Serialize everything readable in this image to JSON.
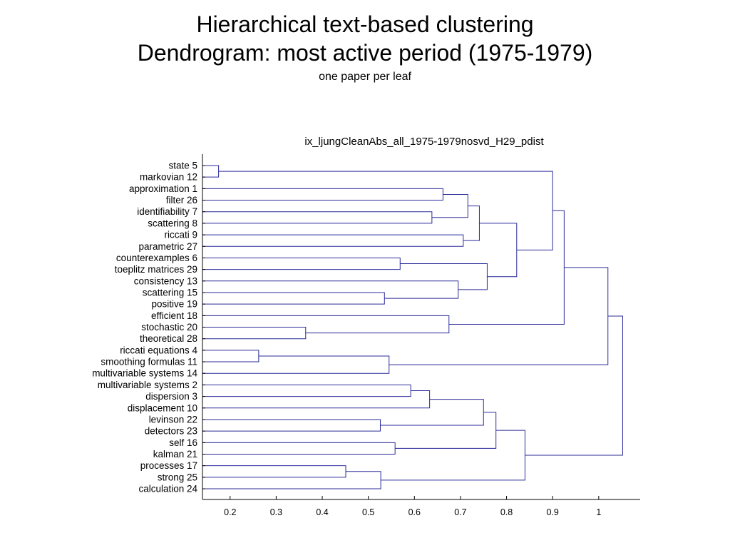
{
  "slide": {
    "title_line_1": "Hierarchical text-based clustering",
    "title_line_2": "Dendrogram: most active period (1975-1979)",
    "subtitle": "one paper per leaf"
  },
  "colors": {
    "link": "#2b2b9a",
    "axis": "#000000",
    "text": "#000000",
    "background": "#ffffff"
  },
  "chart_data": {
    "type": "dendrogram",
    "title": "ix_ljungCleanAbs_all_1975-1979nosvd_H29_pdist",
    "orientation": "horizontal",
    "xlim": [
      0.14,
      1.09
    ],
    "xticks": [
      0.2,
      0.3,
      0.4,
      0.5,
      0.6,
      0.7,
      0.8,
      0.9,
      1
    ],
    "xtick_labels": [
      "0.2",
      "0.3",
      "0.4",
      "0.5",
      "0.6",
      "0.7",
      "0.8",
      "0.9",
      "1"
    ],
    "leaves": [
      "state  5",
      "markovian 12",
      "approximation  1",
      "filter 26",
      "identifiability  7",
      "scattering  8",
      "riccati  9",
      "parametric 27",
      "counterexamples  6",
      "toeplitz matrices 29",
      "consistency 13",
      "scattering 15",
      "positive 19",
      "efficient 18",
      "stochastic 20",
      "theoretical 28",
      "riccati equations  4",
      "smoothing formulas 11",
      "multivariable systems 14",
      "multivariable systems  2",
      "dispersion  3",
      "displacement 10",
      "levinson 22",
      "detectors 23",
      "self 16",
      "kalman 21",
      "processes 17",
      "strong 25",
      "calculation 24"
    ],
    "merges": [
      {
        "left": "L0",
        "right": "L1",
        "height": 0.175
      },
      {
        "left": "L2",
        "right": "L3",
        "height": 0.662
      },
      {
        "left": "L4",
        "right": "L5",
        "height": 0.638
      },
      {
        "left": "M1",
        "right": "M2",
        "height": 0.716
      },
      {
        "left": "L6",
        "right": "L7",
        "height": 0.706
      },
      {
        "left": "M3",
        "right": "M4",
        "height": 0.741
      },
      {
        "left": "L8",
        "right": "L9",
        "height": 0.569
      },
      {
        "left": "L11",
        "right": "L12",
        "height": 0.535
      },
      {
        "left": "L10",
        "right": "M7",
        "height": 0.695
      },
      {
        "left": "M6",
        "right": "M8",
        "height": 0.758
      },
      {
        "left": "M5",
        "right": "M9",
        "height": 0.822
      },
      {
        "left": "M0",
        "right": "M10",
        "height": 0.9
      },
      {
        "left": "L14",
        "right": "L15",
        "height": 0.364
      },
      {
        "left": "L13",
        "right": "M12",
        "height": 0.675
      },
      {
        "left": "M11",
        "right": "M13",
        "height": 0.925
      },
      {
        "left": "L16",
        "right": "L17",
        "height": 0.262
      },
      {
        "left": "M15",
        "right": "L18",
        "height": 0.545
      },
      {
        "left": "M14",
        "right": "M16",
        "height": 1.02
      },
      {
        "left": "L19",
        "right": "L20",
        "height": 0.592
      },
      {
        "left": "M18",
        "right": "L21",
        "height": 0.633
      },
      {
        "left": "L22",
        "right": "L23",
        "height": 0.526
      },
      {
        "left": "M19",
        "right": "M20",
        "height": 0.75
      },
      {
        "left": "L24",
        "right": "L25",
        "height": 0.558
      },
      {
        "left": "M21",
        "right": "M22",
        "height": 0.777
      },
      {
        "left": "L26",
        "right": "L27",
        "height": 0.451
      },
      {
        "left": "M24",
        "right": "L28",
        "height": 0.527
      },
      {
        "left": "M23",
        "right": "M25",
        "height": 0.84
      },
      {
        "left": "M17",
        "right": "M26",
        "height": 1.052
      }
    ]
  }
}
